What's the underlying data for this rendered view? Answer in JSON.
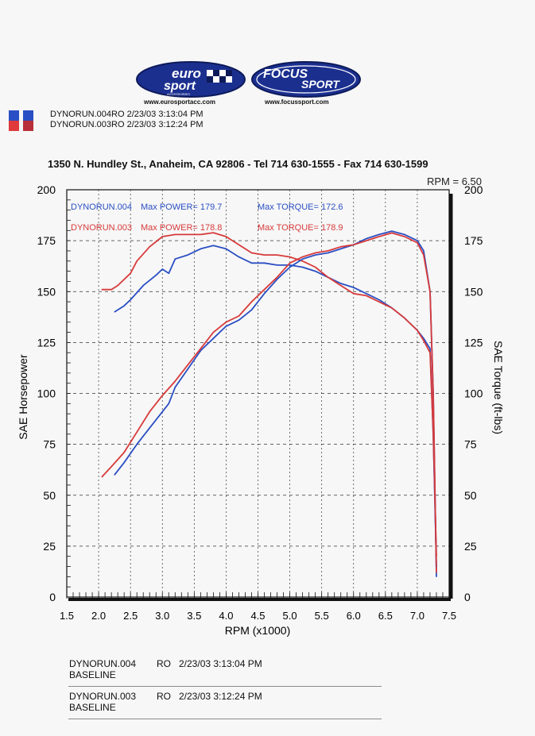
{
  "logos": {
    "euro": {
      "line1": "euro",
      "line2": "sport",
      "small": "ACCESSORIES",
      "url": "www.eurosportacc.com"
    },
    "focus": {
      "line1": "FOCUS",
      "line2": "SPORT",
      "url": "www.focussport.com"
    }
  },
  "runs_header": [
    {
      "text": "DYNORUN.004RO  2/23/03 3:13:04 PM",
      "color": "#2a4fc4"
    },
    {
      "text": "DYNORUN.003RO  2/23/03 3:12:24 PM",
      "color": "#d83a3a"
    }
  ],
  "address": "1350 N. Hundley St., Anaheim, CA 92806 - Tel 714 630-1555 - Fax 714 630-1599",
  "rpm_readout": "RPM = 6.50",
  "chart_data": {
    "type": "line",
    "xlabel": "RPM (x1000)",
    "ylabel": "SAE Horsepower",
    "y2label": "SAE Torque (ft-lbs)",
    "xlim": [
      1.5,
      7.5
    ],
    "ylim": [
      0,
      200
    ],
    "y2lim": [
      0,
      200
    ],
    "x_ticks": [
      "1.5",
      "2.0",
      "2.5",
      "3.0",
      "3.5",
      "4.0",
      "4.5",
      "5.0",
      "5.5",
      "6.0",
      "6.5",
      "7.0",
      "7.5"
    ],
    "y_ticks": [
      "0",
      "25",
      "50",
      "75",
      "100",
      "125",
      "150",
      "175",
      "200"
    ],
    "y2_ticks": [
      "0",
      "25",
      "50",
      "75",
      "100",
      "125",
      "150",
      "175",
      "200"
    ],
    "grid": true,
    "legend": [
      {
        "run": "DYNORUN.004",
        "power": "Max POWER= 179.7",
        "torque": "Max TORQUE= 172.6",
        "color": "#2a4fc4"
      },
      {
        "run": "DYNORUN.003",
        "power": "Max POWER= 178.8",
        "torque": "Max TORQUE= 178.9",
        "color": "#d83a3a"
      }
    ],
    "series": [
      {
        "run": "DYNORUN.004",
        "measure": "torque",
        "color": "#2a4fc4",
        "x": [
          2.25,
          2.4,
          2.5,
          2.7,
          2.9,
          3.0,
          3.1,
          3.2,
          3.4,
          3.6,
          3.8,
          4.0,
          4.2,
          4.4,
          4.6,
          4.8,
          5.0,
          5.2,
          5.4,
          5.6,
          5.8,
          6.0,
          6.2,
          6.4,
          6.6,
          6.8,
          7.0,
          7.1,
          7.2,
          7.25,
          7.3
        ],
        "y": [
          140,
          143,
          146,
          153,
          158,
          161,
          159,
          166,
          168,
          171,
          172.6,
          171,
          167,
          164,
          164,
          163,
          163,
          162,
          160,
          157,
          154,
          152,
          149,
          146,
          142,
          137,
          131,
          127,
          122,
          80,
          15
        ]
      },
      {
        "run": "DYNORUN.003",
        "measure": "torque",
        "color": "#d83a3a",
        "x": [
          2.05,
          2.2,
          2.3,
          2.5,
          2.6,
          2.8,
          3.0,
          3.2,
          3.4,
          3.6,
          3.8,
          4.0,
          4.2,
          4.4,
          4.6,
          4.8,
          5.0,
          5.2,
          5.4,
          5.6,
          5.8,
          6.0,
          6.2,
          6.4,
          6.6,
          6.8,
          7.0,
          7.1,
          7.2,
          7.25,
          7.3
        ],
        "y": [
          151,
          151,
          153,
          159,
          165,
          172,
          177,
          178,
          178,
          178,
          178.9,
          177,
          173,
          169,
          168,
          168,
          167,
          165,
          162,
          157,
          153,
          149,
          148,
          145,
          142,
          137,
          131,
          126,
          120,
          80,
          20
        ]
      },
      {
        "run": "DYNORUN.004",
        "measure": "power",
        "color": "#2a4fc4",
        "x": [
          2.25,
          2.4,
          2.6,
          2.8,
          3.0,
          3.1,
          3.2,
          3.4,
          3.6,
          3.8,
          4.0,
          4.2,
          4.4,
          4.6,
          4.8,
          5.0,
          5.2,
          5.4,
          5.6,
          5.8,
          6.0,
          6.2,
          6.4,
          6.6,
          6.8,
          7.0,
          7.1,
          7.2,
          7.25,
          7.3
        ],
        "y": [
          60,
          66,
          75,
          83,
          91,
          95,
          103,
          112,
          121,
          127,
          133,
          136,
          141,
          149,
          156,
          162,
          166,
          168,
          169,
          171,
          173,
          176,
          178,
          179.7,
          178,
          175,
          170,
          150,
          100,
          10
        ]
      },
      {
        "run": "DYNORUN.003",
        "measure": "power",
        "color": "#d83a3a",
        "x": [
          2.05,
          2.2,
          2.4,
          2.6,
          2.8,
          3.0,
          3.2,
          3.4,
          3.6,
          3.8,
          4.0,
          4.2,
          4.4,
          4.6,
          4.8,
          5.0,
          5.2,
          5.4,
          5.6,
          5.8,
          6.0,
          6.2,
          6.4,
          6.6,
          6.8,
          7.0,
          7.1,
          7.2,
          7.25,
          7.3
        ],
        "y": [
          59,
          64,
          71,
          81,
          91,
          99,
          106,
          114,
          122,
          130,
          135,
          138,
          145,
          151,
          157,
          164,
          167,
          169,
          170,
          172,
          173,
          175,
          177,
          178.8,
          177,
          174,
          168,
          150,
          100,
          12
        ]
      }
    ]
  },
  "footer": [
    {
      "run": "DYNORUN.004",
      "tag": "RO",
      "datetime": "2/23/03 3:13:04 PM",
      "note": "BASELINE"
    },
    {
      "run": "DYNORUN.003",
      "tag": "RO",
      "datetime": "2/23/03 3:12:24 PM",
      "note": "BASELINE"
    }
  ]
}
